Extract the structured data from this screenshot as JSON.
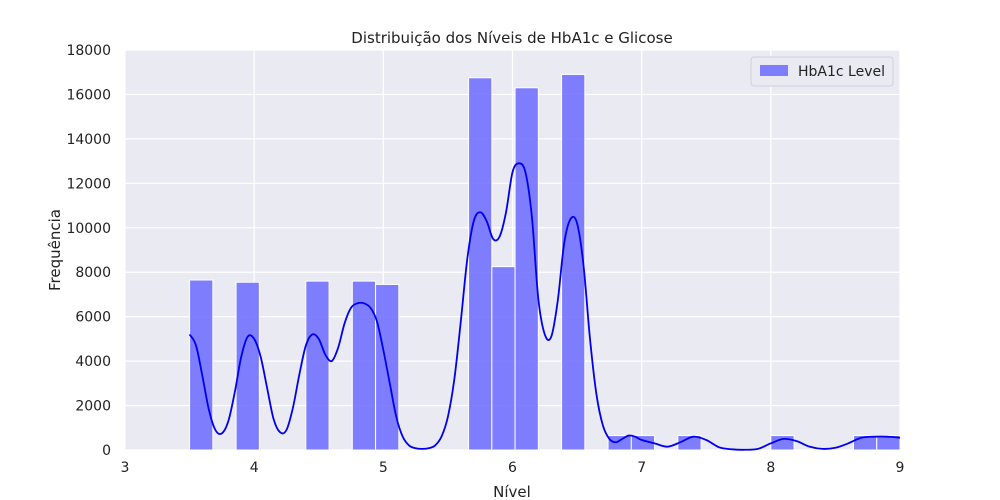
{
  "chart_data": {
    "type": "bar",
    "title": "Distribuição dos Níveis de HbA1c e Glicose",
    "xlabel": "Nível",
    "ylabel": "Frequência",
    "xlim": [
      3,
      9
    ],
    "ylim": [
      0,
      18000
    ],
    "xticks": [
      "3",
      "4",
      "5",
      "6",
      "7",
      "8",
      "9"
    ],
    "yticks": [
      "0",
      "2000",
      "4000",
      "6000",
      "8000",
      "10000",
      "12000",
      "14000",
      "16000",
      "18000"
    ],
    "grid": true,
    "legend_position": "top-right",
    "bar_color": "#6a6aff",
    "kde_color": "#0000ee",
    "background_color": "#eaeaf2",
    "series": [
      {
        "name": "HbA1c Level",
        "bins": [
          {
            "x0": 3.5,
            "x1": 3.68,
            "count": 7650
          },
          {
            "x0": 3.86,
            "x1": 4.04,
            "count": 7550
          },
          {
            "x0": 4.4,
            "x1": 4.58,
            "count": 7600
          },
          {
            "x0": 4.76,
            "x1": 4.94,
            "count": 7600
          },
          {
            "x0": 4.94,
            "x1": 5.12,
            "count": 7450
          },
          {
            "x0": 5.66,
            "x1": 5.84,
            "count": 16750
          },
          {
            "x0": 5.84,
            "x1": 6.02,
            "count": 8250
          },
          {
            "x0": 6.02,
            "x1": 6.2,
            "count": 16300
          },
          {
            "x0": 6.38,
            "x1": 6.56,
            "count": 16900
          },
          {
            "x0": 6.74,
            "x1": 6.92,
            "count": 650
          },
          {
            "x0": 6.92,
            "x1": 7.1,
            "count": 650
          },
          {
            "x0": 7.28,
            "x1": 7.46,
            "count": 650
          },
          {
            "x0": 8.0,
            "x1": 8.18,
            "count": 650
          },
          {
            "x0": 8.64,
            "x1": 8.82,
            "count": 650
          },
          {
            "x0": 8.82,
            "x1": 9.0,
            "count": 650
          }
        ],
        "kde": {
          "x": [
            3.5,
            3.55,
            3.6,
            3.65,
            3.7,
            3.75,
            3.8,
            3.85,
            3.9,
            3.95,
            4.0,
            4.05,
            4.1,
            4.15,
            4.2,
            4.25,
            4.3,
            4.35,
            4.4,
            4.45,
            4.5,
            4.55,
            4.6,
            4.65,
            4.7,
            4.75,
            4.8,
            4.85,
            4.9,
            4.95,
            5.0,
            5.05,
            5.1,
            5.15,
            5.2,
            5.25,
            5.3,
            5.35,
            5.4,
            5.45,
            5.5,
            5.55,
            5.6,
            5.65,
            5.7,
            5.75,
            5.8,
            5.85,
            5.9,
            5.95,
            6.0,
            6.05,
            6.1,
            6.15,
            6.2,
            6.25,
            6.3,
            6.35,
            6.4,
            6.45,
            6.5,
            6.55,
            6.6,
            6.65,
            6.7,
            6.75,
            6.8,
            6.85,
            6.9,
            6.95,
            7.0,
            7.1,
            7.2,
            7.3,
            7.4,
            7.5,
            7.6,
            7.7,
            7.8,
            7.9,
            8.0,
            8.1,
            8.2,
            8.3,
            8.4,
            8.5,
            8.6,
            8.7,
            8.8,
            8.9,
            9.0
          ],
          "y": [
            5200,
            4700,
            3300,
            1800,
            900,
            750,
            1300,
            2600,
            4200,
            5100,
            5000,
            4200,
            2800,
            1400,
            800,
            900,
            1900,
            3400,
            4700,
            5200,
            5000,
            4300,
            4000,
            4600,
            5700,
            6400,
            6600,
            6600,
            6400,
            5800,
            4500,
            3000,
            1500,
            600,
            200,
            80,
            50,
            80,
            200,
            600,
            1500,
            3200,
            5800,
            8600,
            10300,
            10700,
            10300,
            9500,
            9600,
            10700,
            12500,
            12900,
            12500,
            10500,
            6800,
            5200,
            5100,
            6700,
            9300,
            10400,
            10200,
            8300,
            5000,
            2500,
            1100,
            500,
            350,
            500,
            650,
            600,
            450,
            300,
            150,
            350,
            600,
            450,
            120,
            30,
            10,
            50,
            300,
            500,
            400,
            150,
            50,
            100,
            300,
            550,
            600,
            600,
            550
          ]
        }
      }
    ]
  }
}
